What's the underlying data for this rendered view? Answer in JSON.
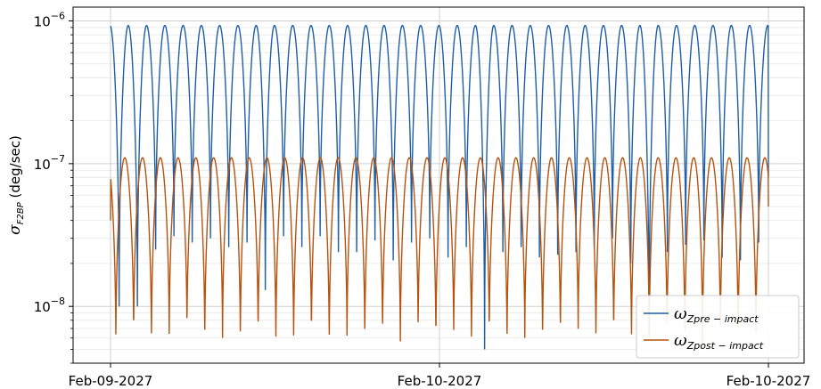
{
  "chart_data": {
    "type": "line",
    "ylabel_main": "σ",
    "ylabel_sub": "F2BP",
    "ylabel_units": " (deg/sec)",
    "yscale": "log",
    "ylim": [
      4e-09,
      1.25e-06
    ],
    "y_ticks": [
      {
        "value": 1e-06,
        "base": "10",
        "exp": "−6"
      },
      {
        "value": 1e-07,
        "base": "10",
        "exp": "−7"
      },
      {
        "value": 1e-08,
        "base": "10",
        "exp": "−8"
      }
    ],
    "x_start": "Feb-09-2027",
    "x_end": "Feb-10-2027",
    "x_ticks": [
      "Feb-09-2027",
      "Feb-10-2027",
      "Feb-10-2027"
    ],
    "x_tick_fractions": [
      0,
      0.5,
      1
    ],
    "grid": true,
    "legend_position": "lower-right",
    "series": [
      {
        "name": "ω",
        "name_sub": "Zpre − impact",
        "color": "#1f5fa8",
        "envelope_max": 9.3e-07,
        "cycles": 36,
        "start_phase": 0.03,
        "end_value": 8e-08,
        "minima": [
          1e-08,
          1e-08,
          2.5e-08,
          3.1e-08,
          2.8e-08,
          3e-08,
          2.6e-08,
          2.8e-08,
          1.3e-08,
          3.1e-08,
          2.6e-08,
          3.1e-08,
          2.4e-08,
          2.4e-08,
          2.9e-08,
          2.1e-08,
          2.8e-08,
          3e-08,
          2.2e-08,
          2.6e-08,
          5e-09,
          2.4e-08,
          2.6e-08,
          2.2e-08,
          2.3e-08,
          2.4e-08,
          2.6e-08,
          3e-08,
          2e-08,
          6e-09,
          2.4e-08,
          2.7e-08,
          2.9e-08,
          2.2e-08,
          2.1e-08,
          2.8e-08
        ]
      },
      {
        "name": "ω",
        "name_sub": "Zpost − impact",
        "color": "#b5530f",
        "envelope_max": 1.1e-07,
        "cycles": 37,
        "start_phase": 0.2,
        "start_value": 4e-08,
        "end_value": 5e-08,
        "minima": [
          5e-09,
          5.5e-09,
          5e-09,
          5.5e-09,
          6e-09,
          5e-09,
          5.5e-09,
          5e-09,
          5.5e-09,
          5e-09,
          5e-09,
          5.5e-09,
          4.8e-09,
          5.5e-09,
          5e-09,
          5.5e-09,
          5e-09,
          6e-09,
          5e-09,
          5.5e-09,
          5e-09,
          5.5e-09,
          4.8e-09,
          5.5e-09,
          5e-09,
          5.5e-09,
          6e-09,
          5e-09,
          5.5e-09,
          5e-09,
          5e-09,
          5.5e-09,
          5e-09,
          5e-09,
          5.5e-09,
          5e-09,
          5.5e-09
        ]
      }
    ]
  }
}
